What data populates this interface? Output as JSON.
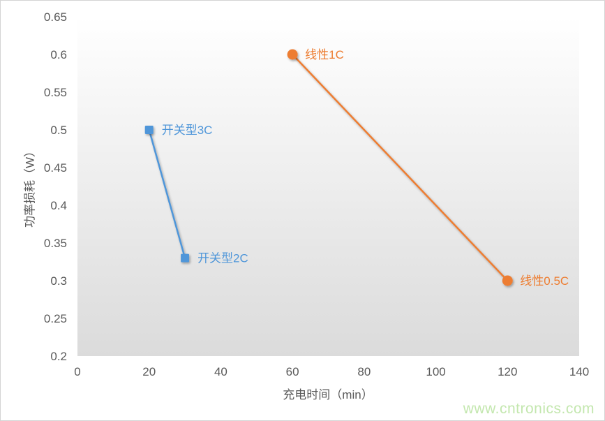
{
  "page": {
    "watermark": {
      "text": "www.cntronics.com",
      "color": "#c3e7ae"
    }
  },
  "chart_data": {
    "type": "scatter",
    "title": "",
    "xlabel": "充电时间（min）",
    "ylabel": "功率损耗（W）",
    "xlim": [
      0,
      140
    ],
    "ylim": [
      0.2,
      0.65
    ],
    "xticks": [
      0,
      20,
      40,
      60,
      80,
      100,
      120,
      140
    ],
    "yticks": [
      0.65,
      0.6,
      0.55,
      0.5,
      0.45,
      0.4,
      0.35,
      0.3,
      0.25,
      0.2
    ],
    "grid": false,
    "legend_position": "none",
    "axis_text_color": "#595959",
    "plot_bg_gradient_top": "#ffffff",
    "plot_bg_gradient_bottom": "#dbdbdb",
    "series": [
      {
        "name": "开关型",
        "color": "#4f96d9",
        "marker": "square",
        "points": [
          {
            "x": 20,
            "y": 0.5,
            "label": "开关型3C"
          },
          {
            "x": 30,
            "y": 0.33,
            "label": "开关型2C"
          }
        ]
      },
      {
        "name": "线性",
        "color": "#ed7d31",
        "marker": "circle",
        "points": [
          {
            "x": 60,
            "y": 0.6,
            "label": "线性1C"
          },
          {
            "x": 120,
            "y": 0.3,
            "label": "线性0.5C"
          }
        ]
      }
    ]
  }
}
